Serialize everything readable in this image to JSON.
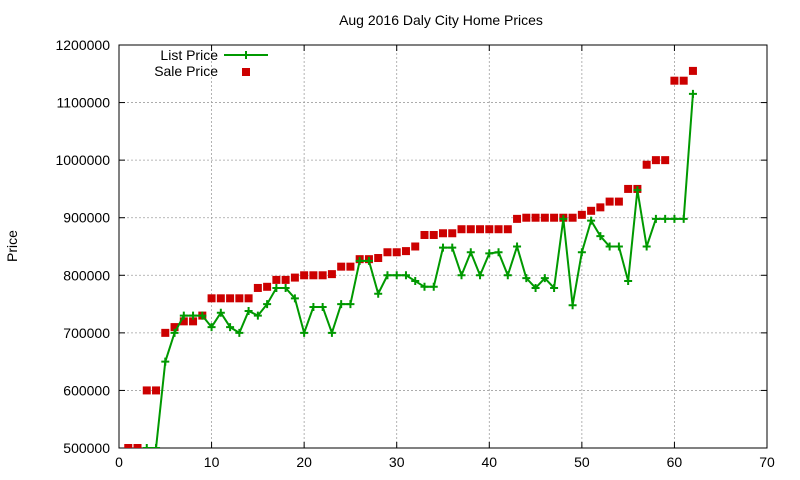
{
  "chart_data": {
    "type": "line",
    "title": "Aug 2016 Daly City Home Prices",
    "xlabel": "",
    "ylabel": "Price",
    "xlim": [
      0,
      70
    ],
    "ylim": [
      500000,
      1200000
    ],
    "xticks": [
      0,
      10,
      20,
      30,
      40,
      50,
      60,
      70
    ],
    "yticks": [
      500000,
      600000,
      700000,
      800000,
      900000,
      1000000,
      1100000,
      1200000
    ],
    "grid": true,
    "legend_position": "top-left",
    "series": [
      {
        "name": "List Price",
        "style": "line-points",
        "color": "#009900",
        "x": [
          1,
          2,
          3,
          4,
          5,
          6,
          7,
          8,
          9,
          10,
          11,
          12,
          13,
          14,
          15,
          16,
          17,
          18,
          19,
          20,
          21,
          22,
          23,
          24,
          25,
          26,
          27,
          28,
          29,
          30,
          31,
          32,
          33,
          34,
          35,
          36,
          37,
          38,
          39,
          40,
          41,
          42,
          43,
          44,
          45,
          46,
          47,
          48,
          49,
          50,
          51,
          52,
          53,
          54,
          55,
          56,
          57,
          58,
          59,
          60,
          61,
          62
        ],
        "values": [
          480000,
          490000,
          500000,
          500000,
          650000,
          700000,
          730000,
          730000,
          730000,
          710000,
          735000,
          710000,
          700000,
          738000,
          730000,
          750000,
          778000,
          778000,
          760000,
          700000,
          745000,
          745000,
          700000,
          750000,
          750000,
          825000,
          825000,
          768000,
          800000,
          800000,
          800000,
          790000,
          780000,
          780000,
          848000,
          848000,
          800000,
          840000,
          800000,
          838000,
          840000,
          800000,
          850000,
          795000,
          778000,
          795000,
          778000,
          898000,
          748000,
          840000,
          895000,
          868000,
          850000,
          850000,
          790000,
          948000,
          850000,
          898000,
          898000,
          898000,
          898000,
          1115000
        ]
      },
      {
        "name": "Sale Price",
        "style": "points",
        "color": "#cc0000",
        "x": [
          1,
          2,
          3,
          4,
          5,
          6,
          7,
          8,
          9,
          10,
          11,
          12,
          13,
          14,
          15,
          16,
          17,
          18,
          19,
          20,
          21,
          22,
          23,
          24,
          25,
          26,
          27,
          28,
          29,
          30,
          31,
          32,
          33,
          34,
          35,
          36,
          37,
          38,
          39,
          40,
          41,
          42,
          43,
          44,
          45,
          46,
          47,
          48,
          49,
          50,
          51,
          52,
          53,
          54,
          55,
          56,
          57,
          58,
          59,
          60,
          61,
          62
        ],
        "values": [
          500000,
          500000,
          600000,
          600000,
          700000,
          710000,
          720000,
          720000,
          730000,
          760000,
          760000,
          760000,
          760000,
          760000,
          778000,
          780000,
          792000,
          792000,
          796000,
          800000,
          800000,
          800000,
          802000,
          815000,
          815000,
          828000,
          828000,
          830000,
          840000,
          840000,
          842000,
          850000,
          870000,
          870000,
          873000,
          873000,
          880000,
          880000,
          880000,
          880000,
          880000,
          880000,
          898000,
          900000,
          900000,
          900000,
          900000,
          900000,
          900000,
          905000,
          912000,
          918000,
          928000,
          928000,
          950000,
          950000,
          992000,
          1000000,
          1000000,
          1138000,
          1138000,
          1155000
        ]
      }
    ]
  }
}
